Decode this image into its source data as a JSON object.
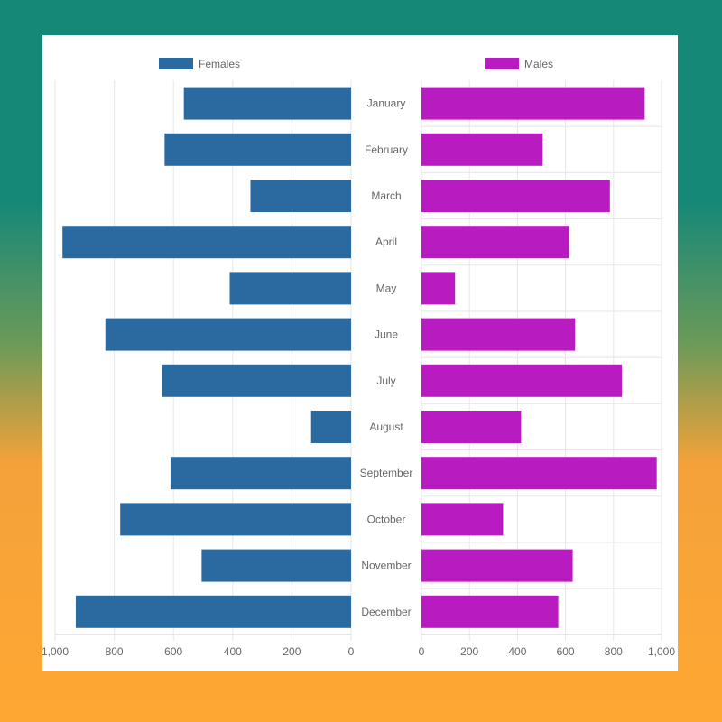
{
  "chart_data": {
    "type": "bar",
    "orientation": "horizontal",
    "layout": "mirrored",
    "categories": [
      "January",
      "February",
      "March",
      "April",
      "May",
      "June",
      "July",
      "August",
      "September",
      "October",
      "November",
      "December"
    ],
    "series": [
      {
        "name": "Females",
        "color": "#2a6aa0",
        "side": "left",
        "values": [
          565,
          630,
          340,
          975,
          410,
          830,
          640,
          135,
          610,
          780,
          505,
          930
        ]
      },
      {
        "name": "Males",
        "color": "#b81bbf",
        "side": "right",
        "values": [
          930,
          505,
          785,
          615,
          140,
          640,
          835,
          415,
          980,
          340,
          630,
          570
        ]
      }
    ],
    "xlim": [
      0,
      1000
    ],
    "ticks": [
      "1,000",
      "800",
      "600",
      "400",
      "200",
      "0"
    ],
    "ticks_right": [
      "0",
      "200",
      "400",
      "600",
      "800",
      "1,000"
    ],
    "grid": true,
    "legend": "top"
  }
}
